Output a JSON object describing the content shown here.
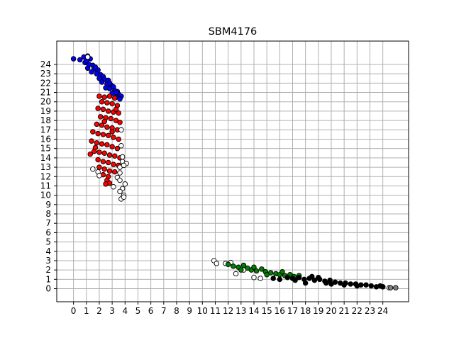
{
  "chart_data": {
    "type": "scatter",
    "title": "SBM4176",
    "xlabel": "",
    "ylabel": "",
    "xlim": [
      -1.3,
      26.0
    ],
    "ylim": [
      -1.4,
      26.5
    ],
    "grid": true,
    "x_ticks": [
      0,
      1,
      2,
      3,
      4,
      5,
      6,
      7,
      8,
      9,
      10,
      11,
      12,
      13,
      14,
      15,
      16,
      17,
      18,
      19,
      20,
      21,
      22,
      23,
      24
    ],
    "y_ticks": [
      0,
      1,
      2,
      3,
      4,
      5,
      6,
      7,
      8,
      9,
      10,
      11,
      12,
      13,
      14,
      15,
      16,
      17,
      18,
      19,
      20,
      21,
      22,
      23,
      24
    ],
    "series": [
      {
        "color": "#0000ff",
        "points": [
          [
            0,
            24.6
          ],
          [
            0.5,
            24.5
          ],
          [
            0.8,
            24.8
          ],
          [
            1.1,
            24.9
          ],
          [
            1.3,
            24.6
          ],
          [
            0.9,
            24.2
          ],
          [
            1.2,
            24.0
          ],
          [
            1.5,
            23.9
          ],
          [
            1.1,
            23.6
          ],
          [
            1.6,
            23.5
          ],
          [
            1.9,
            23.4
          ],
          [
            1.4,
            23.2
          ],
          [
            1.8,
            23.0
          ],
          [
            2.1,
            22.9
          ],
          [
            2.3,
            22.7
          ],
          [
            2.0,
            22.5
          ],
          [
            2.4,
            22.4
          ],
          [
            2.7,
            22.3
          ],
          [
            2.2,
            22.1
          ],
          [
            2.6,
            21.9
          ],
          [
            2.9,
            21.8
          ],
          [
            3.1,
            21.6
          ],
          [
            2.8,
            21.4
          ],
          [
            3.2,
            21.2
          ],
          [
            3.4,
            21.1
          ],
          [
            3.0,
            20.9
          ],
          [
            3.5,
            20.8
          ],
          [
            3.7,
            20.6
          ],
          [
            3.3,
            20.5
          ],
          [
            3.6,
            20.3
          ],
          [
            2.5,
            21.5
          ],
          [
            1.0,
            24.4
          ],
          [
            1.7,
            23.7
          ],
          [
            2.8,
            22.0
          ],
          [
            3.3,
            21.0
          ]
        ]
      },
      {
        "color": "#ff0000",
        "points": [
          [
            2.0,
            20.6
          ],
          [
            2.4,
            20.5
          ],
          [
            2.8,
            20.6
          ],
          [
            3.2,
            20.4
          ],
          [
            2.2,
            20.0
          ],
          [
            2.6,
            19.9
          ],
          [
            3.0,
            19.8
          ],
          [
            3.4,
            19.6
          ],
          [
            1.9,
            19.3
          ],
          [
            2.3,
            19.2
          ],
          [
            2.7,
            19.0
          ],
          [
            3.1,
            18.9
          ],
          [
            3.5,
            18.8
          ],
          [
            2.1,
            18.4
          ],
          [
            2.5,
            18.3
          ],
          [
            2.9,
            18.2
          ],
          [
            3.3,
            18.0
          ],
          [
            3.6,
            17.8
          ],
          [
            1.8,
            17.6
          ],
          [
            2.2,
            17.5
          ],
          [
            2.6,
            17.3
          ],
          [
            3.0,
            17.2
          ],
          [
            3.4,
            17.0
          ],
          [
            1.5,
            16.8
          ],
          [
            1.9,
            16.6
          ],
          [
            2.3,
            16.5
          ],
          [
            2.7,
            16.4
          ],
          [
            3.1,
            16.2
          ],
          [
            3.5,
            16.0
          ],
          [
            1.4,
            15.8
          ],
          [
            1.8,
            15.6
          ],
          [
            2.2,
            15.5
          ],
          [
            2.6,
            15.4
          ],
          [
            3.0,
            15.2
          ],
          [
            3.4,
            15.0
          ],
          [
            1.6,
            14.7
          ],
          [
            2.0,
            14.6
          ],
          [
            2.4,
            14.5
          ],
          [
            2.8,
            14.3
          ],
          [
            3.2,
            14.2
          ],
          [
            3.6,
            14.0
          ],
          [
            1.3,
            14.4
          ],
          [
            1.9,
            13.8
          ],
          [
            2.3,
            13.6
          ],
          [
            2.7,
            13.5
          ],
          [
            3.1,
            13.3
          ],
          [
            3.5,
            13.2
          ],
          [
            2.0,
            13.0
          ],
          [
            2.4,
            12.8
          ],
          [
            2.8,
            12.6
          ],
          [
            3.2,
            12.5
          ],
          [
            2.3,
            12.2
          ],
          [
            2.7,
            12.0
          ],
          [
            2.6,
            11.6
          ],
          [
            2.8,
            11.3
          ],
          [
            2.5,
            11.2
          ],
          [
            3.0,
            16.8
          ],
          [
            2.4,
            17.9
          ],
          [
            3.3,
            19.2
          ],
          [
            1.7,
            15.1
          ]
        ]
      },
      {
        "color": "#ffffff",
        "points": [
          [
            1.5,
            12.8
          ],
          [
            1.9,
            12.5
          ],
          [
            2.0,
            12.1
          ],
          [
            3.6,
            13.0
          ],
          [
            3.8,
            13.6
          ],
          [
            4.1,
            13.4
          ],
          [
            3.9,
            13.2
          ],
          [
            3.6,
            12.4
          ],
          [
            3.4,
            11.9
          ],
          [
            3.6,
            11.6
          ],
          [
            4.0,
            11.2
          ],
          [
            3.8,
            10.7
          ],
          [
            3.6,
            10.4
          ],
          [
            3.9,
            10.0
          ],
          [
            3.7,
            9.6
          ],
          [
            3.9,
            9.8
          ],
          [
            3.1,
            10.9
          ],
          [
            3.7,
            17.0
          ],
          [
            3.8,
            14.1
          ],
          [
            10.9,
            3.0
          ],
          [
            11.1,
            2.7
          ],
          [
            11.8,
            2.7
          ],
          [
            12.2,
            2.8
          ],
          [
            12.6,
            1.6
          ],
          [
            13.2,
            2.0
          ],
          [
            14.0,
            1.2
          ],
          [
            14.5,
            1.1
          ],
          [
            24.0,
            0.2
          ],
          [
            24.5,
            0.1
          ],
          [
            1.1,
            24.8
          ],
          [
            3.7,
            15.3
          ]
        ]
      },
      {
        "color": "#008000",
        "points": [
          [
            12.0,
            2.6
          ],
          [
            12.4,
            2.4
          ],
          [
            12.8,
            2.3
          ],
          [
            13.2,
            2.5
          ],
          [
            13.5,
            2.2
          ],
          [
            13.8,
            2.0
          ],
          [
            14.2,
            1.9
          ],
          [
            14.6,
            2.1
          ],
          [
            14.9,
            1.8
          ],
          [
            15.3,
            1.7
          ],
          [
            15.7,
            1.6
          ],
          [
            16.0,
            1.5
          ],
          [
            16.4,
            1.4
          ],
          [
            16.8,
            1.5
          ],
          [
            17.1,
            1.3
          ],
          [
            13.0,
            2.0
          ],
          [
            14.0,
            2.3
          ],
          [
            15.0,
            1.5
          ],
          [
            16.2,
            1.8
          ],
          [
            17.5,
            1.4
          ]
        ]
      },
      {
        "color": "#000000",
        "points": [
          [
            15.5,
            1.1
          ],
          [
            16.0,
            1.0
          ],
          [
            16.6,
            1.2
          ],
          [
            17.0,
            1.1
          ],
          [
            17.5,
            1.2
          ],
          [
            17.9,
            1.0
          ],
          [
            18.3,
            1.1
          ],
          [
            18.7,
            0.9
          ],
          [
            19.1,
            1.0
          ],
          [
            19.5,
            0.8
          ],
          [
            19.9,
            0.9
          ],
          [
            20.3,
            0.7
          ],
          [
            20.7,
            0.6
          ],
          [
            21.1,
            0.6
          ],
          [
            21.5,
            0.5
          ],
          [
            21.9,
            0.5
          ],
          [
            22.3,
            0.4
          ],
          [
            22.7,
            0.4
          ],
          [
            23.1,
            0.3
          ],
          [
            23.5,
            0.2
          ],
          [
            24.0,
            0.2
          ],
          [
            18.5,
            1.3
          ],
          [
            19.0,
            1.2
          ],
          [
            20.0,
            0.5
          ],
          [
            21.0,
            0.4
          ],
          [
            22.0,
            0.3
          ],
          [
            17.2,
            0.9
          ],
          [
            18.0,
            0.6
          ],
          [
            19.6,
            0.6
          ],
          [
            23.8,
            0.3
          ]
        ]
      },
      {
        "color": "#808080",
        "points": [
          [
            24.6,
            0.1
          ],
          [
            25.0,
            0.1
          ]
        ]
      }
    ]
  }
}
